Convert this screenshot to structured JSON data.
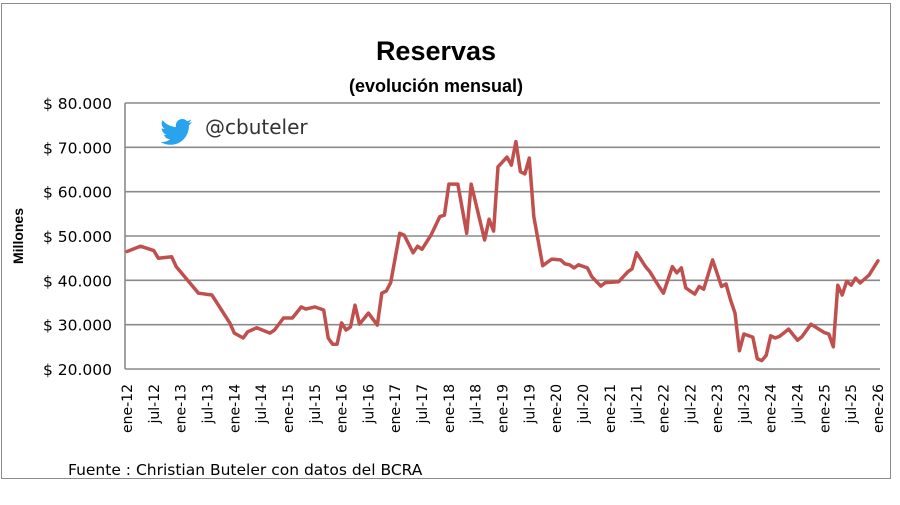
{
  "chart_data": {
    "type": "line",
    "title": "Reservas",
    "subtitle": "(evolución mensual)",
    "ylabel": "Millones",
    "xlabel": "",
    "source": "Fuente : Christian Buteler con datos del BCRA",
    "watermark": "@cbuteler",
    "watermark_icon": "twitter-bird-icon",
    "ylim": [
      20000,
      80000
    ],
    "yticks": [
      20000,
      30000,
      40000,
      50000,
      60000,
      70000,
      80000
    ],
    "ytick_labels": [
      "$ 20.000",
      "$ 30.000",
      "$ 40.000",
      "$ 50.000",
      "$ 60.000",
      "$ 70.000",
      "$ 80.000"
    ],
    "xlim": [
      "2012-01",
      "2026-01"
    ],
    "xtick_labels": [
      "ene-12",
      "jul-12",
      "ene-13",
      "jul-13",
      "ene-14",
      "jul-14",
      "ene-15",
      "jul-15",
      "ene-16",
      "jul-16",
      "ene-17",
      "jul-17",
      "ene-18",
      "jul-18",
      "ene-19",
      "jul-19",
      "ene-20",
      "jul-20",
      "ene-21",
      "jul-21",
      "ene-22",
      "jul-22",
      "ene-23",
      "jul-23",
      "ene-24",
      "jul-24",
      "ene-25",
      "jul-25",
      "ene-26"
    ],
    "grid": "horizontal",
    "line_color": "#c0504d",
    "series": [
      {
        "x": [
          "2012-01",
          "2012-04",
          "2012-07",
          "2012-08",
          "2012-11",
          "2012-12",
          "2013-05",
          "2013-08",
          "2013-12",
          "2014-01",
          "2014-03",
          "2014-04",
          "2014-06",
          "2014-09",
          "2014-10",
          "2014-12",
          "2015-02",
          "2015-04",
          "2015-05",
          "2015-07",
          "2015-09",
          "2015-10",
          "2015-11",
          "2015-12",
          "2016-01",
          "2016-02",
          "2016-03",
          "2016-04",
          "2016-05",
          "2016-07",
          "2016-09",
          "2016-10",
          "2016-11",
          "2016-12",
          "2017-02",
          "2017-03",
          "2017-05",
          "2017-06",
          "2017-07",
          "2017-09",
          "2017-11",
          "2017-12",
          "2018-01",
          "2018-03",
          "2018-05",
          "2018-06",
          "2018-09",
          "2018-10",
          "2018-11",
          "2018-12",
          "2019-02",
          "2019-03",
          "2019-04",
          "2019-05",
          "2019-06",
          "2019-07",
          "2019-08",
          "2019-10",
          "2019-12",
          "2020-02",
          "2020-03",
          "2020-04",
          "2020-05",
          "2020-06",
          "2020-08",
          "2020-09",
          "2020-11",
          "2020-12",
          "2021-03",
          "2021-05",
          "2021-06",
          "2021-07",
          "2021-09",
          "2021-10",
          "2021-12",
          "2022-01",
          "2022-03",
          "2022-04",
          "2022-05",
          "2022-06",
          "2022-08",
          "2022-09",
          "2022-10",
          "2022-12",
          "2023-02",
          "2023-03",
          "2023-04",
          "2023-05",
          "2023-06",
          "2023-07",
          "2023-09",
          "2023-10",
          "2023-11",
          "2023-12",
          "2024-01",
          "2024-02",
          "2024-03",
          "2024-05",
          "2024-07",
          "2024-08",
          "2024-10",
          "2025-01",
          "2025-02",
          "2025-03",
          "2025-04",
          "2025-05",
          "2025-06",
          "2025-07",
          "2025-08",
          "2025-09",
          "2025-11",
          "2026-01"
        ],
        "y": [
          46500,
          47700,
          46700,
          45000,
          45300,
          43100,
          37100,
          36700,
          30400,
          28100,
          27000,
          28400,
          29300,
          28100,
          28800,
          31500,
          31500,
          34000,
          33500,
          34000,
          33300,
          27000,
          25600,
          25600,
          30400,
          28800,
          29500,
          34400,
          30100,
          32600,
          29900,
          37100,
          37600,
          39500,
          50600,
          50200,
          46200,
          47700,
          47000,
          50200,
          54400,
          54700,
          61700,
          61700,
          50600,
          61700,
          49100,
          53800,
          51100,
          65600,
          67800,
          66000,
          71300,
          64500,
          64000,
          67600,
          54400,
          43300,
          44800,
          44600,
          43700,
          43500,
          42800,
          43500,
          42800,
          40800,
          38700,
          39500,
          39700,
          41900,
          42600,
          46200,
          43100,
          41900,
          38600,
          37100,
          43100,
          41700,
          42800,
          38300,
          36900,
          38600,
          38000,
          44600,
          38600,
          39200,
          35600,
          32600,
          24100,
          27900,
          27200,
          22300,
          21900,
          23100,
          27500,
          27000,
          27400,
          29000,
          26500,
          27300,
          30100,
          28200,
          27900,
          25000,
          38900,
          36700,
          39800,
          38900,
          40500,
          39400,
          41200,
          44400
        ]
      }
    ]
  }
}
